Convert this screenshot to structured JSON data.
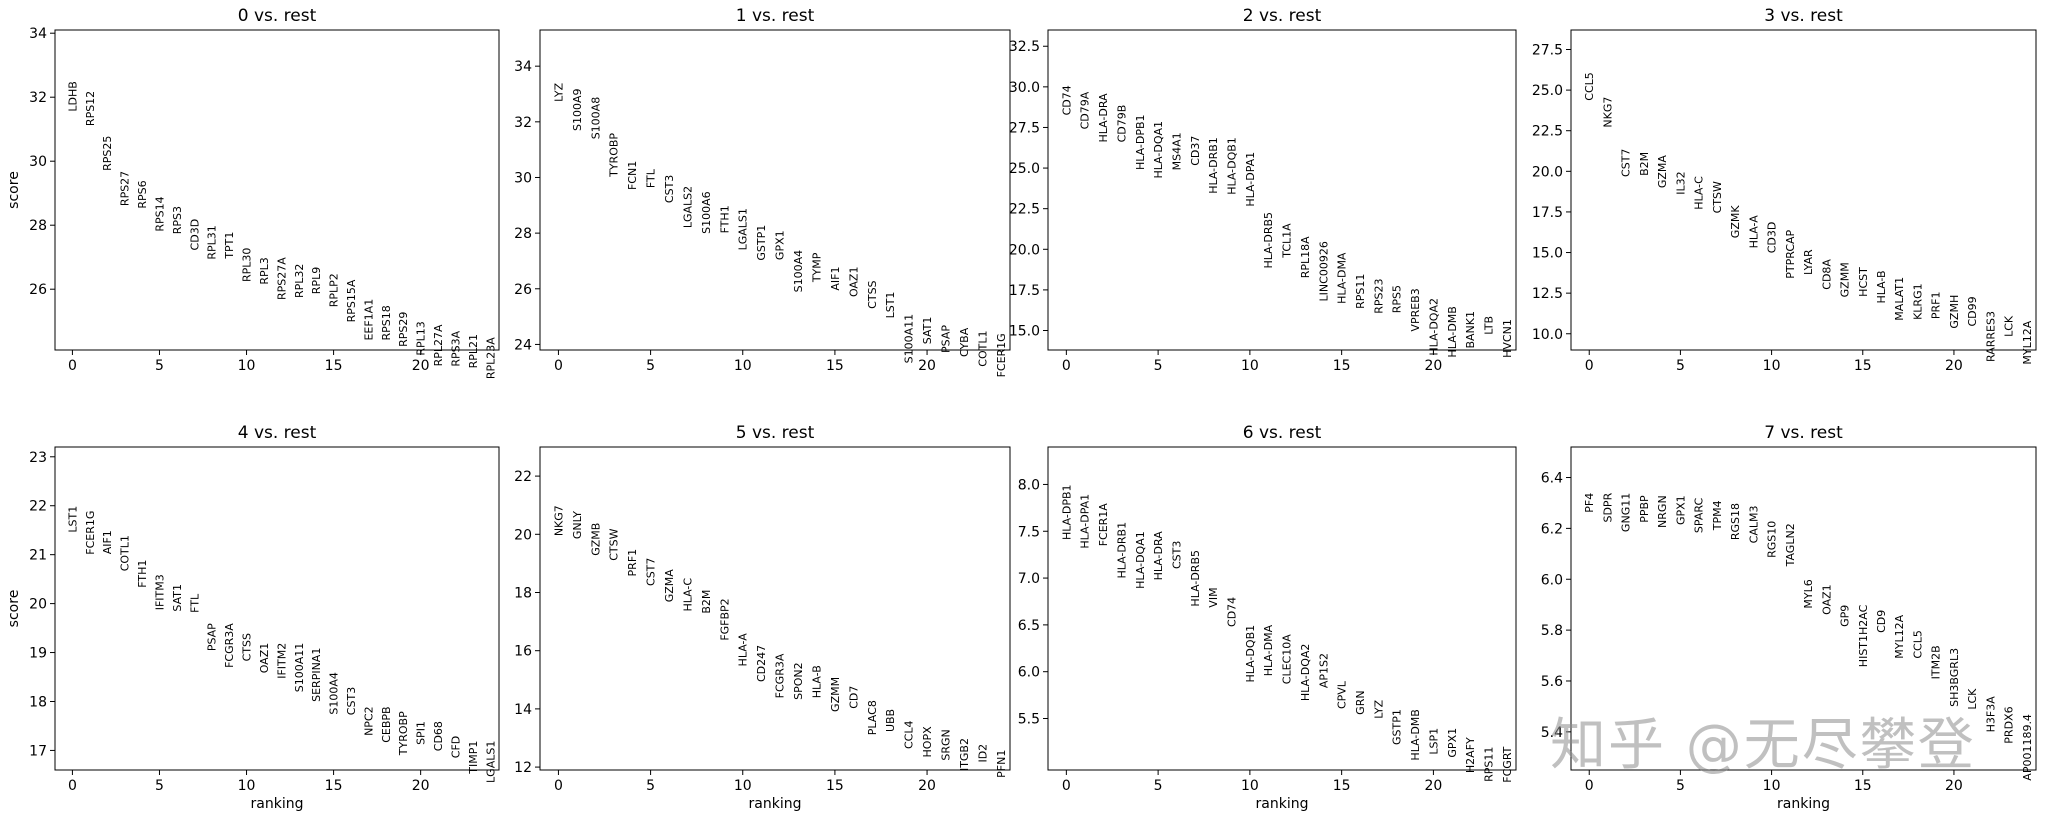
{
  "figure": {
    "watermark": "知乎 @无尽攀登"
  },
  "chart_data": [
    {
      "type": "scatter",
      "title": "0 vs. rest",
      "xlabel": "",
      "ylabel": "score",
      "xlim": [
        -1,
        24.5
      ],
      "ylim": [
        24.1,
        34.1
      ],
      "xticks": [
        0,
        5,
        10,
        15,
        20
      ],
      "yticks": [
        26,
        28,
        30,
        32,
        34
      ],
      "ytick_labels": [
        "26",
        "28",
        "30",
        "32",
        "34"
      ],
      "genes": [
        "LDHB",
        "RPS12",
        "RPS25",
        "RPS27",
        "RPS6",
        "RPS14",
        "RPS3",
        "CD3D",
        "RPL31",
        "TPT1",
        "RPL30",
        "RPL3",
        "RPS27A",
        "RPL32",
        "RPL9",
        "RPLP2",
        "RPS15A",
        "EEF1A1",
        "RPS18",
        "RPS29",
        "RPL13",
        "RPL27A",
        "RPS3A",
        "RPL21",
        "RPL23A"
      ],
      "scores": [
        32.5,
        32.2,
        30.8,
        29.7,
        29.4,
        28.9,
        28.6,
        28.2,
        28.0,
        27.8,
        27.3,
        27.0,
        27.0,
        26.8,
        26.7,
        26.5,
        26.3,
        25.7,
        25.5,
        25.3,
        25.0,
        24.9,
        24.7,
        24.6,
        24.5
      ]
    },
    {
      "type": "scatter",
      "title": "1 vs. rest",
      "xlabel": "",
      "ylabel": "",
      "xlim": [
        -1,
        24.5
      ],
      "ylim": [
        23.8,
        35.3
      ],
      "xticks": [
        0,
        5,
        10,
        15,
        20
      ],
      "yticks": [
        24,
        26,
        28,
        30,
        32,
        34
      ],
      "ytick_labels": [
        "24",
        "26",
        "28",
        "30",
        "32",
        "34"
      ],
      "genes": [
        "LYZ",
        "S100A9",
        "S100A8",
        "TYROBP",
        "FCN1",
        "FTL",
        "CST3",
        "LGALS2",
        "S100A6",
        "FTH1",
        "LGALS1",
        "GSTP1",
        "GPX1",
        "S100A4",
        "TYMP",
        "AIF1",
        "OAZ1",
        "CTSS",
        "LST1",
        "S100A11",
        "SAT1",
        "PSAP",
        "CYBA",
        "COTL1",
        "FCER1G"
      ],
      "scores": [
        33.4,
        33.2,
        32.9,
        31.6,
        30.6,
        30.3,
        30.1,
        29.7,
        29.5,
        29.0,
        28.9,
        28.3,
        28.1,
        27.4,
        27.3,
        26.8,
        26.8,
        26.3,
        25.9,
        25.1,
        25.0,
        24.7,
        24.6,
        24.5,
        24.4
      ]
    },
    {
      "type": "scatter",
      "title": "2 vs. rest",
      "xlabel": "",
      "ylabel": "",
      "xlim": [
        -1,
        24.5
      ],
      "ylim": [
        13.8,
        33.5
      ],
      "xticks": [
        0,
        5,
        10,
        15,
        20
      ],
      "yticks": [
        15.0,
        17.5,
        20.0,
        22.5,
        25.0,
        27.5,
        30.0,
        32.5
      ],
      "ytick_labels": [
        "15.0",
        "17.5",
        "20.0",
        "22.5",
        "25.0",
        "27.5",
        "30.0",
        "32.5"
      ],
      "genes": [
        "CD74",
        "CD79A",
        "HLA-DRA",
        "CD79B",
        "HLA-DPB1",
        "HLA-DQA1",
        "MS4A1",
        "CD37",
        "HLA-DRB1",
        "HLA-DQB1",
        "HLA-DPA1",
        "HLA-DRB5",
        "TCL1A",
        "RPL18A",
        "LINC00926",
        "HLA-DMA",
        "RPS11",
        "RPS23",
        "RPS5",
        "VPREB3",
        "HLA-DQA2",
        "HLA-DMB",
        "BANK1",
        "LTB",
        "HVCN1"
      ],
      "scores": [
        30.1,
        29.7,
        29.6,
        28.9,
        28.3,
        27.9,
        27.2,
        27.0,
        26.9,
        26.9,
        26.0,
        22.3,
        21.6,
        20.8,
        20.5,
        19.8,
        18.5,
        18.2,
        17.8,
        17.6,
        17.0,
        16.5,
        16.2,
        15.9,
        15.7
      ]
    },
    {
      "type": "scatter",
      "title": "3 vs. rest",
      "xlabel": "",
      "ylabel": "",
      "xlim": [
        -1,
        24.5
      ],
      "ylim": [
        9.0,
        28.7
      ],
      "xticks": [
        0,
        5,
        10,
        15,
        20
      ],
      "yticks": [
        10.0,
        12.5,
        15.0,
        17.5,
        20.0,
        22.5,
        25.0,
        27.5
      ],
      "ytick_labels": [
        "10.0",
        "12.5",
        "15.0",
        "17.5",
        "20.0",
        "22.5",
        "25.0",
        "27.5"
      ],
      "genes": [
        "CCL5",
        "NKG7",
        "CST7",
        "B2M",
        "GZMA",
        "IL32",
        "HLA-C",
        "CTSW",
        "GZMK",
        "HLA-A",
        "CD3D",
        "PTPRCAP",
        "LYAR",
        "CD8A",
        "GZMM",
        "HCST",
        "HLA-B",
        "MALAT1",
        "KLRG1",
        "PRF1",
        "GZMH",
        "CD99",
        "RARRES3",
        "LCK",
        "MYL12A"
      ],
      "scores": [
        26.1,
        24.6,
        21.4,
        21.2,
        21.0,
        20.0,
        19.7,
        19.4,
        17.9,
        17.3,
        16.9,
        16.4,
        15.2,
        14.6,
        14.4,
        14.1,
        13.9,
        13.5,
        13.1,
        12.6,
        12.4,
        12.3,
        11.4,
        11.1,
        10.8
      ]
    },
    {
      "type": "scatter",
      "title": "4 vs. rest",
      "xlabel": "ranking",
      "ylabel": "score",
      "xlim": [
        -1,
        24.5
      ],
      "ylim": [
        16.6,
        23.2
      ],
      "xticks": [
        0,
        5,
        10,
        15,
        20
      ],
      "yticks": [
        17,
        18,
        19,
        20,
        21,
        22,
        23
      ],
      "ytick_labels": [
        "17",
        "18",
        "19",
        "20",
        "21",
        "22",
        "23"
      ],
      "genes": [
        "LST1",
        "FCER1G",
        "AIF1",
        "COTL1",
        "FTH1",
        "IFITM3",
        "SAT1",
        "FTL",
        "PSAP",
        "FCGR3A",
        "CTSS",
        "OAZ1",
        "IFITM2",
        "S100A11",
        "SERPINA1",
        "S100A4",
        "CST3",
        "NPC2",
        "CEBPB",
        "TYROBP",
        "SPI1",
        "CD68",
        "CFD",
        "TIMP1",
        "LGALS1"
      ],
      "scores": [
        22.0,
        21.9,
        21.5,
        21.4,
        20.9,
        20.6,
        20.4,
        20.2,
        19.6,
        19.6,
        19.4,
        19.2,
        19.2,
        19.2,
        19.1,
        18.6,
        18.3,
        17.9,
        17.9,
        17.8,
        17.6,
        17.6,
        17.3,
        17.2,
        17.2
      ]
    },
    {
      "type": "scatter",
      "title": "5 vs. rest",
      "xlabel": "ranking",
      "ylabel": "",
      "xlim": [
        -1,
        24.5
      ],
      "ylim": [
        11.9,
        23.0
      ],
      "xticks": [
        0,
        5,
        10,
        15,
        20
      ],
      "yticks": [
        12,
        14,
        16,
        18,
        20,
        22
      ],
      "ytick_labels": [
        "12",
        "14",
        "16",
        "18",
        "20",
        "22"
      ],
      "genes": [
        "NKG7",
        "GNLY",
        "GZMB",
        "CTSW",
        "PRF1",
        "CST7",
        "GZMA",
        "HLA-C",
        "B2M",
        "FGFBP2",
        "HLA-A",
        "CD247",
        "FCGR3A",
        "SPON2",
        "HLA-B",
        "GZMM",
        "CD7",
        "PLAC8",
        "UBB",
        "CCL4",
        "HOPX",
        "SRGN",
        "ITGB2",
        "ID2",
        "PFN1"
      ],
      "scores": [
        21.0,
        20.8,
        20.4,
        20.2,
        19.5,
        19.2,
        18.8,
        18.5,
        18.1,
        17.8,
        16.6,
        16.2,
        15.9,
        15.6,
        15.5,
        15.1,
        14.8,
        14.3,
        14.0,
        13.6,
        13.4,
        13.3,
        13.0,
        12.8,
        12.6
      ]
    },
    {
      "type": "scatter",
      "title": "6 vs. rest",
      "xlabel": "ranking",
      "ylabel": "",
      "xlim": [
        -1,
        24.5
      ],
      "ylim": [
        4.95,
        8.4
      ],
      "xticks": [
        0,
        5,
        10,
        15,
        20
      ],
      "yticks": [
        5.5,
        6.0,
        6.5,
        7.0,
        7.5,
        8.0
      ],
      "ytick_labels": [
        "5.5",
        "6.0",
        "6.5",
        "7.0",
        "7.5",
        "8.0"
      ],
      "genes": [
        "HLA-DPB1",
        "HLA-DPA1",
        "FCER1A",
        "HLA-DRB1",
        "HLA-DQA1",
        "HLA-DRA",
        "CST3",
        "HLA-DRB5",
        "VIM",
        "CD74",
        "HLA-DQB1",
        "HLA-DMA",
        "CLEC10A",
        "HLA-DQA2",
        "AP1S2",
        "CPVL",
        "GRN",
        "LYZ",
        "GSTP1",
        "HLA-DMB",
        "LSP1",
        "GPX1",
        "H2AFY",
        "RPS11",
        "FCGRT"
      ],
      "scores": [
        8.0,
        7.9,
        7.8,
        7.6,
        7.5,
        7.5,
        7.4,
        7.3,
        6.9,
        6.8,
        6.5,
        6.5,
        6.4,
        6.3,
        6.2,
        5.9,
        5.8,
        5.7,
        5.6,
        5.6,
        5.4,
        5.4,
        5.3,
        5.2,
        5.2
      ]
    },
    {
      "type": "scatter",
      "title": "7 vs. rest",
      "xlabel": "ranking",
      "ylabel": "",
      "xlim": [
        -1,
        24.5
      ],
      "ylim": [
        5.25,
        6.52
      ],
      "xticks": [
        0,
        5,
        10,
        15,
        20
      ],
      "yticks": [
        5.4,
        5.6,
        5.8,
        6.0,
        6.2,
        6.4
      ],
      "ytick_labels": [
        "5.4",
        "5.6",
        "5.8",
        "6.0",
        "6.2",
        "6.4"
      ],
      "genes": [
        "PF4",
        "SDPR",
        "GNG11",
        "PPBP",
        "NRGN",
        "GPX1",
        "SPARC",
        "TPM4",
        "RGS18",
        "CALM3",
        "RGS10",
        "TAGLN2",
        "MYL6",
        "OAZ1",
        "GP9",
        "HIST1H2AC",
        "CD9",
        "MYL12A",
        "CCL5",
        "ITM2B",
        "SH3BGRL3",
        "LCK",
        "H3F3A",
        "PRDX6",
        "AP001189.4"
      ],
      "scores": [
        6.34,
        6.34,
        6.34,
        6.33,
        6.33,
        6.33,
        6.32,
        6.31,
        6.3,
        6.29,
        6.23,
        6.22,
        6.0,
        5.98,
        5.9,
        5.9,
        5.88,
        5.86,
        5.8,
        5.74,
        5.73,
        5.57,
        5.54,
        5.5,
        5.47
      ]
    }
  ]
}
